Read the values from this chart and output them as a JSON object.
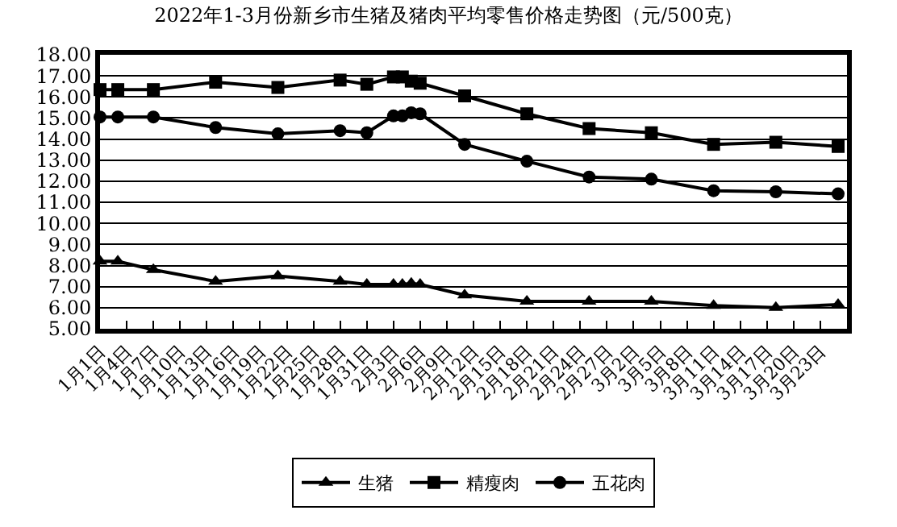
{
  "chart_data": {
    "type": "line",
    "title": "2022年1-3月份新乡市生猪及猪肉平均零售价格走势图（元/500克）",
    "x": [
      "2022-01-01",
      "2022-01-03",
      "2022-01-07",
      "2022-01-14",
      "2022-01-21",
      "2022-01-28",
      "2022-01-31",
      "2022-02-03",
      "2022-02-04",
      "2022-02-05",
      "2022-02-06",
      "2022-02-11",
      "2022-02-18",
      "2022-02-25",
      "2022-03-04",
      "2022-03-11",
      "2022-03-18",
      "2022-03-25"
    ],
    "series": [
      {
        "name": "生猪",
        "color": "#000000",
        "marker": "triangle",
        "values": [
          8.2,
          8.2,
          7.8,
          7.25,
          7.5,
          7.25,
          7.1,
          7.1,
          7.1,
          7.15,
          7.1,
          6.6,
          6.3,
          6.3,
          6.3,
          6.1,
          6.0,
          6.15
        ]
      },
      {
        "name": "精瘦肉",
        "color": "#000000",
        "marker": "square",
        "values": [
          16.35,
          16.35,
          16.35,
          16.7,
          16.45,
          16.8,
          16.6,
          16.95,
          16.95,
          16.75,
          16.65,
          16.05,
          15.2,
          14.5,
          14.3,
          13.75,
          13.85,
          13.65
        ]
      },
      {
        "name": "五花肉",
        "color": "#000000",
        "marker": "circle",
        "values": [
          15.05,
          15.05,
          15.05,
          14.55,
          14.25,
          14.4,
          14.3,
          15.1,
          15.1,
          15.25,
          15.2,
          13.75,
          12.95,
          12.2,
          12.1,
          11.55,
          11.5,
          11.4
        ]
      }
    ],
    "xlim": [
      "2022-01-01",
      "2022-03-26"
    ],
    "xticks": [
      {
        "value": "2022-01-01",
        "label": "1月1日"
      },
      {
        "value": "2022-01-04",
        "label": "1月4日"
      },
      {
        "value": "2022-01-07",
        "label": "1月7日"
      },
      {
        "value": "2022-01-10",
        "label": "1月10日"
      },
      {
        "value": "2022-01-13",
        "label": "1月13日"
      },
      {
        "value": "2022-01-16",
        "label": "1月16日"
      },
      {
        "value": "2022-01-19",
        "label": "1月19日"
      },
      {
        "value": "2022-01-22",
        "label": "1月22日"
      },
      {
        "value": "2022-01-25",
        "label": "1月25日"
      },
      {
        "value": "2022-01-28",
        "label": "1月28日"
      },
      {
        "value": "2022-01-31",
        "label": "1月31日"
      },
      {
        "value": "2022-02-03",
        "label": "2月3日"
      },
      {
        "value": "2022-02-06",
        "label": "2月6日"
      },
      {
        "value": "2022-02-09",
        "label": "2月9日"
      },
      {
        "value": "2022-02-12",
        "label": "2月12日"
      },
      {
        "value": "2022-02-15",
        "label": "2月15日"
      },
      {
        "value": "2022-02-18",
        "label": "2月18日"
      },
      {
        "value": "2022-02-21",
        "label": "2月21日"
      },
      {
        "value": "2022-02-24",
        "label": "2月24日"
      },
      {
        "value": "2022-02-27",
        "label": "2月27日"
      },
      {
        "value": "2022-03-02",
        "label": "3月2日"
      },
      {
        "value": "2022-03-05",
        "label": "3月5日"
      },
      {
        "value": "2022-03-08",
        "label": "3月8日"
      },
      {
        "value": "2022-03-11",
        "label": "3月11日"
      },
      {
        "value": "2022-03-14",
        "label": "3月14日"
      },
      {
        "value": "2022-03-17",
        "label": "3月17日"
      },
      {
        "value": "2022-03-20",
        "label": "3月20日"
      },
      {
        "value": "2022-03-23",
        "label": "3月23日"
      }
    ],
    "ylim": [
      5,
      18
    ],
    "yticks": [
      {
        "value": 5,
        "label": "5.00"
      },
      {
        "value": 6,
        "label": "6.00"
      },
      {
        "value": 7,
        "label": "7.00"
      },
      {
        "value": 8,
        "label": "8.00"
      },
      {
        "value": 9,
        "label": "9.00"
      },
      {
        "value": 10,
        "label": "10.00"
      },
      {
        "value": 11,
        "label": "11.00"
      },
      {
        "value": 12,
        "label": "12.00"
      },
      {
        "value": 13,
        "label": "13.00"
      },
      {
        "value": 14,
        "label": "14.00"
      },
      {
        "value": 15,
        "label": "15.00"
      },
      {
        "value": 16,
        "label": "16.00"
      },
      {
        "value": 17,
        "label": "17.00"
      },
      {
        "value": 18,
        "label": "18.00"
      }
    ],
    "grid": "y",
    "legend": "bottom",
    "line_style": "solid"
  }
}
